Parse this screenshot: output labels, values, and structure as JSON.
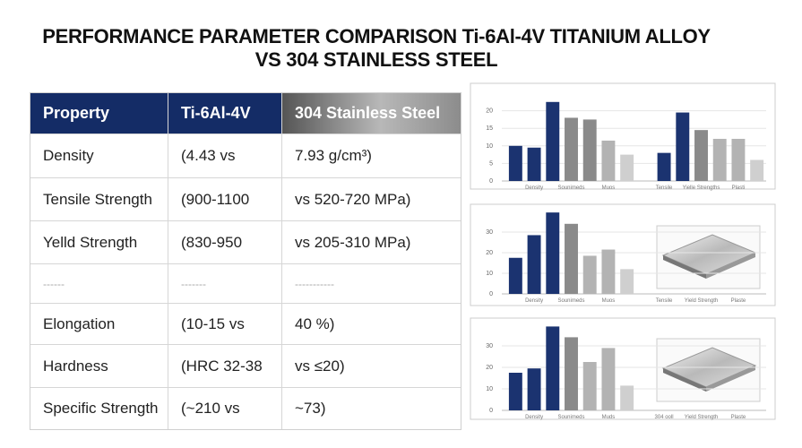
{
  "title": [
    "PERFORMANCE PARAMETER COMPARISON Ti-6Al-4V TITANIUM ALLOY",
    "VS 304 STAINLESS STEEL"
  ],
  "table": {
    "header": [
      "Property",
      "Ti-6Al-4V",
      "304 Stainless Steel"
    ],
    "rows": [
      [
        "Density",
        "(4.43 vs",
        "7.93 g/cm³)"
      ],
      [
        "Tensile Strength",
        "(900-1100",
        "vs 520-720 MPa)"
      ],
      [
        "Yelld Strength",
        "(830-950",
        "vs 205-310 MPa)"
      ],
      [
        "------",
        "-------",
        "-----------"
      ],
      [
        "Elongation",
        "(10-15 vs",
        "40 %)"
      ],
      [
        "Hardness",
        "(HRC 32-38",
        "vs ≤20)"
      ],
      [
        "Specific Strength",
        "(~210 vs",
        "~73)"
      ]
    ]
  },
  "chart_data": [
    {
      "type": "bar",
      "ylim": [
        0,
        25
      ],
      "yticks": [
        0,
        5,
        10,
        15,
        20
      ],
      "grid": true,
      "categories": [
        null,
        "Density",
        null,
        "Sounimeds",
        null,
        "Muos",
        null,
        null,
        "Tensile",
        null,
        "Yielle Strengths",
        null,
        "Plasti",
        null
      ],
      "values": [
        10,
        9.5,
        22.5,
        18,
        17.5,
        11.5,
        7.5,
        null,
        8,
        19.5,
        14.5,
        12,
        12,
        6
      ],
      "colors": [
        "#1b3370",
        "#1b3370",
        "#1b3370",
        "#8a8a8a",
        "#8a8a8a",
        "#b3b3b3",
        "#cfcfcf",
        null,
        "#1b3370",
        "#1b3370",
        "#8a8a8a",
        "#b3b3b3",
        "#b3b3b3",
        "#cfcfcf"
      ]
    },
    {
      "type": "bar",
      "ylim": [
        0,
        40
      ],
      "yticks": [
        0,
        10,
        20,
        30
      ],
      "grid": true,
      "categories": [
        null,
        "Density",
        null,
        "Sounimeds",
        null,
        "Muos",
        null,
        null,
        "Tensile",
        null,
        "Yield Strength",
        null,
        "Plaste",
        null
      ],
      "values": [
        17.5,
        28.5,
        39.5,
        34,
        18.5,
        21.5,
        12,
        null,
        null,
        null,
        null,
        null,
        null,
        null
      ],
      "colors": [
        "#1b3370",
        "#1b3370",
        "#1b3370",
        "#8a8a8a",
        "#b3b3b3",
        "#b3b3b3",
        "#cfcfcf",
        null,
        null,
        null,
        null,
        null,
        null,
        null
      ]
    },
    {
      "type": "bar",
      "ylim": [
        0,
        40
      ],
      "yticks": [
        0,
        10,
        20,
        30
      ],
      "grid": true,
      "categories": [
        null,
        "Density",
        null,
        "Sounimeds",
        null,
        "Muds",
        null,
        null,
        "304 ooll",
        null,
        "Yield Strength",
        null,
        "Plaste",
        null
      ],
      "values": [
        17.5,
        19.5,
        39,
        34,
        22.5,
        29,
        11.5,
        null,
        null,
        null,
        null,
        null,
        null,
        null
      ],
      "colors": [
        "#1b3370",
        "#1b3370",
        "#1b3370",
        "#8a8a8a",
        "#b3b3b3",
        "#b3b3b3",
        "#cfcfcf",
        null,
        null,
        null,
        null,
        null,
        null,
        null
      ]
    }
  ]
}
